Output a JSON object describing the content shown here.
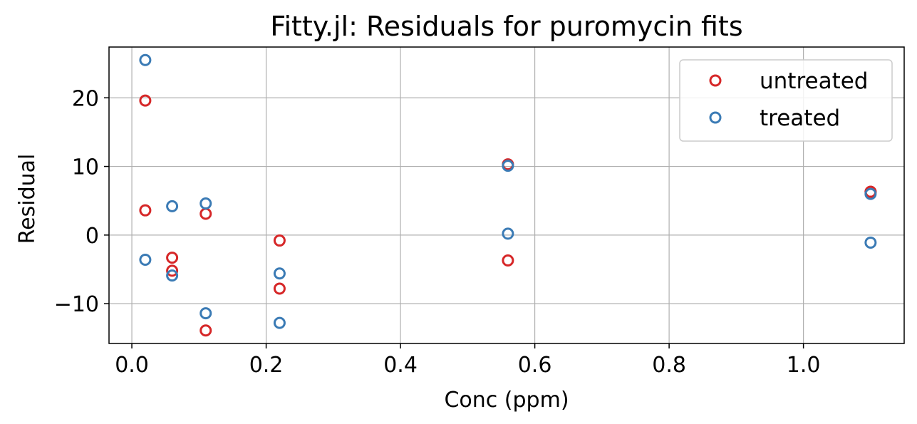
{
  "chart_data": {
    "type": "scatter",
    "title": "Fitty.jl: Residuals for puromycin fits",
    "xlabel": "Conc (ppm)",
    "ylabel": "Residual",
    "xlim": [
      -0.034,
      1.15
    ],
    "ylim": [
      -15.8,
      27.4
    ],
    "xticks": [
      0.0,
      0.2,
      0.4,
      0.6,
      0.8,
      1.0
    ],
    "xtick_labels": [
      "0.0",
      "0.2",
      "0.4",
      "0.6",
      "0.8",
      "1.0"
    ],
    "yticks": [
      -10,
      0,
      10,
      20
    ],
    "ytick_labels": [
      "−10",
      "0",
      "10",
      "20"
    ],
    "grid": true,
    "legend_position": "top-right",
    "series": [
      {
        "name": "untreated",
        "color": "#d62728",
        "marker": "open-circle",
        "points": [
          {
            "x": 0.02,
            "y": 19.6
          },
          {
            "x": 0.02,
            "y": 3.6
          },
          {
            "x": 0.06,
            "y": -3.3
          },
          {
            "x": 0.06,
            "y": -5.2
          },
          {
            "x": 0.11,
            "y": 3.1
          },
          {
            "x": 0.11,
            "y": -13.9
          },
          {
            "x": 0.22,
            "y": -0.8
          },
          {
            "x": 0.22,
            "y": -7.8
          },
          {
            "x": 0.56,
            "y": 10.3
          },
          {
            "x": 0.56,
            "y": -3.7
          },
          {
            "x": 1.1,
            "y": 6.3
          },
          {
            "x": 1.1,
            "y": 6.3
          }
        ]
      },
      {
        "name": "treated",
        "color": "#3b7bb5",
        "marker": "open-circle",
        "points": [
          {
            "x": 0.02,
            "y": 25.5
          },
          {
            "x": 0.02,
            "y": -3.6
          },
          {
            "x": 0.06,
            "y": 4.2
          },
          {
            "x": 0.06,
            "y": -5.9
          },
          {
            "x": 0.11,
            "y": 4.6
          },
          {
            "x": 0.11,
            "y": -11.4
          },
          {
            "x": 0.22,
            "y": -5.6
          },
          {
            "x": 0.22,
            "y": -12.8
          },
          {
            "x": 0.56,
            "y": 10.1
          },
          {
            "x": 0.56,
            "y": 0.2
          },
          {
            "x": 1.1,
            "y": 6.0
          },
          {
            "x": 1.1,
            "y": -1.1
          }
        ]
      }
    ]
  }
}
